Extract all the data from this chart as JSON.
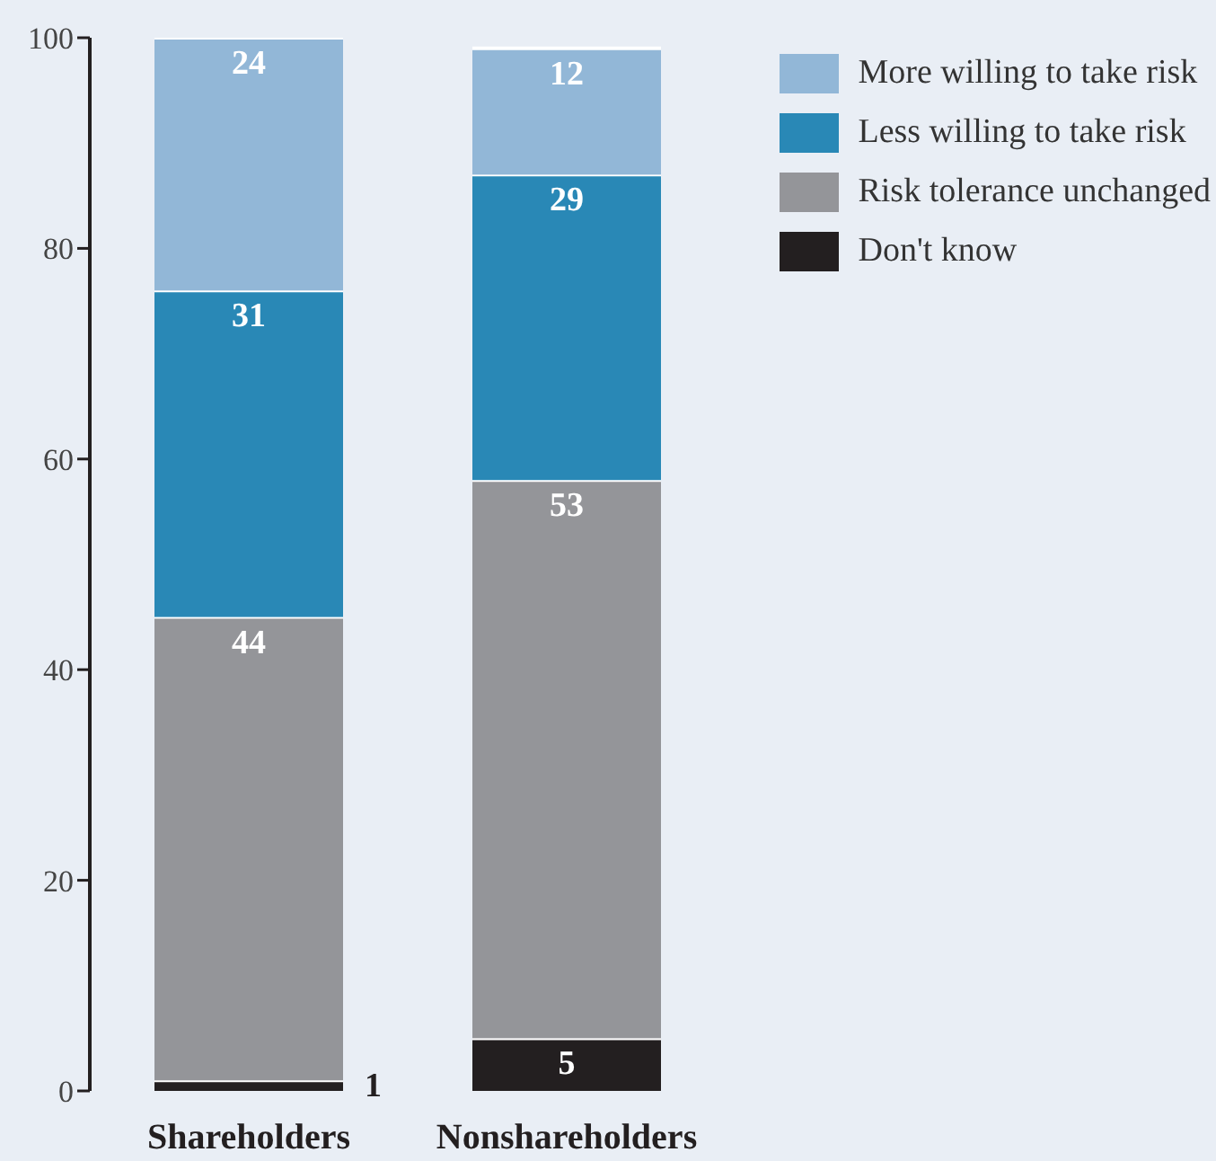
{
  "chart_data": {
    "type": "bar",
    "stacked": true,
    "categories": [
      "Shareholders",
      "Nonshareholders"
    ],
    "series": [
      {
        "name": "Don't know",
        "color": "#231f20",
        "values": [
          1,
          5
        ]
      },
      {
        "name": "Risk tolerance unchanged",
        "color": "#949599",
        "values": [
          44,
          53
        ]
      },
      {
        "name": "Less willing to take risk",
        "color": "#2988b6",
        "values": [
          31,
          29
        ]
      },
      {
        "name": "More willing to take risk",
        "color": "#92b7d7",
        "values": [
          24,
          12
        ]
      }
    ],
    "ylim": [
      0,
      100
    ],
    "yticks": [
      0,
      20,
      40,
      60,
      80,
      100
    ],
    "grid": false,
    "legend": "top right",
    "data_labels": true
  }
}
